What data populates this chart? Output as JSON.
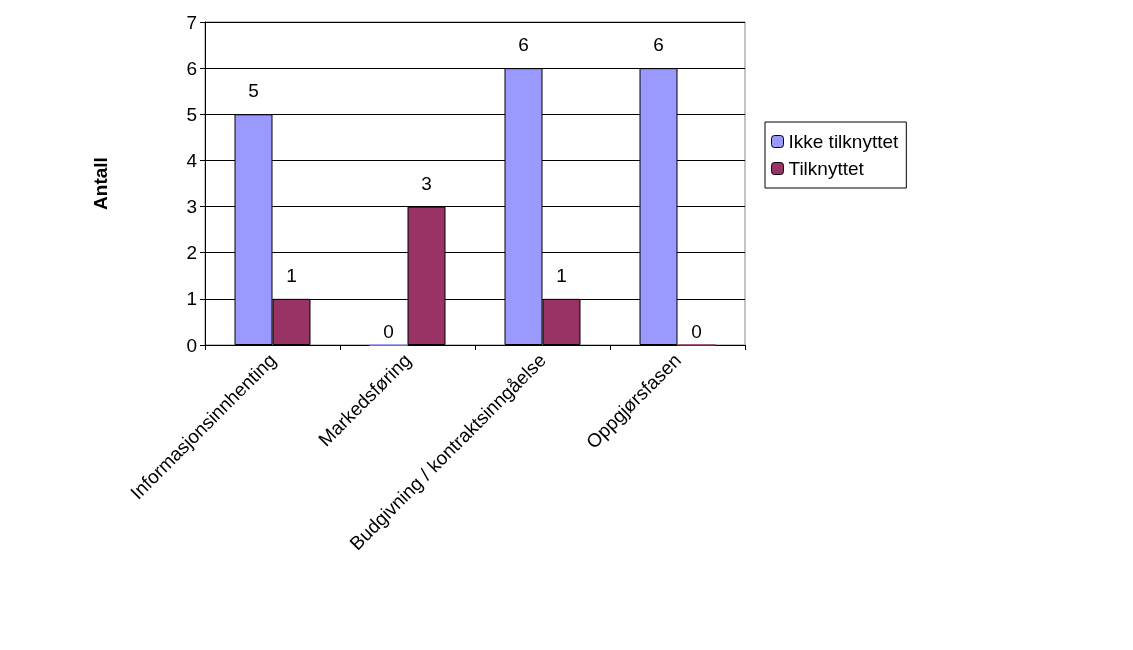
{
  "chart_data": {
    "type": "bar",
    "ylabel": "Antall",
    "categories": [
      "Informasjonsinnhenting",
      "Markedsføring",
      "Budgivning / kontraktsinngåelse",
      "Oppgjørsfasen"
    ],
    "series": [
      {
        "name": "Ikke tilknyttet",
        "color": "#9999ff",
        "values": [
          5,
          0,
          6,
          6
        ]
      },
      {
        "name": "Tilknyttet",
        "color": "#993366",
        "values": [
          1,
          3,
          1,
          0
        ]
      }
    ],
    "ylim": [
      0,
      7
    ],
    "yticks": [
      0,
      1,
      2,
      3,
      4,
      5,
      6,
      7
    ],
    "grid": "y",
    "legend": "right",
    "data_labels": true
  }
}
